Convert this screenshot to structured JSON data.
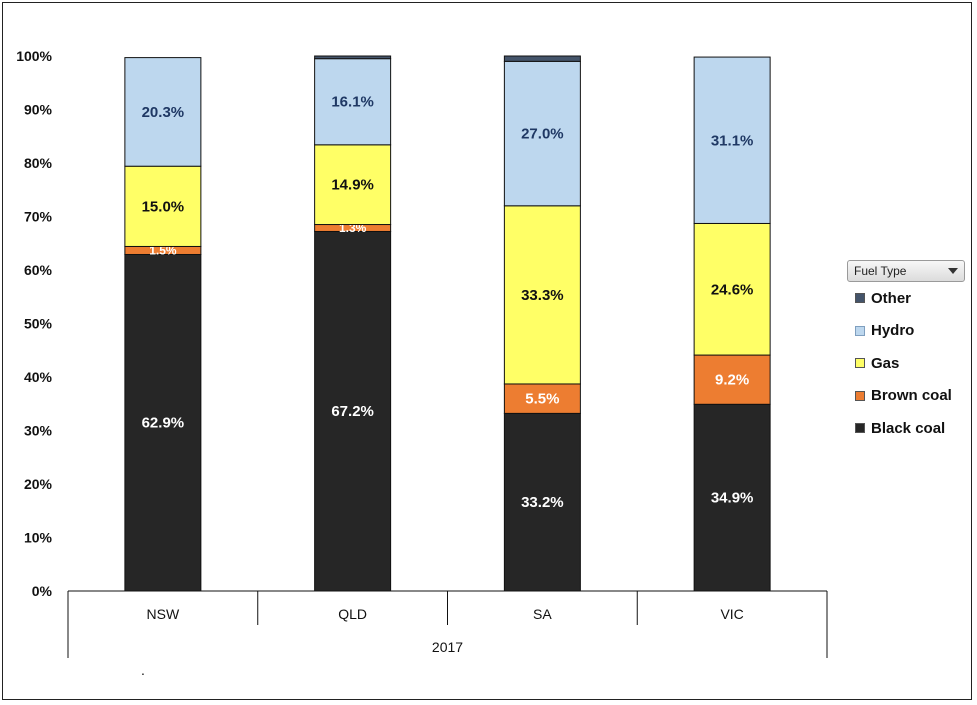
{
  "legend": {
    "header": "Fuel Type"
  },
  "footnote": ".",
  "chart_data": {
    "type": "bar",
    "stacked": true,
    "normalized_percent": true,
    "title": "",
    "xlabel": "",
    "ylabel": "",
    "x_group_label": "2017",
    "categories": [
      "NSW",
      "QLD",
      "SA",
      "VIC"
    ],
    "ylim": [
      0,
      100
    ],
    "yticks": [
      "0%",
      "10%",
      "20%",
      "30%",
      "40%",
      "50%",
      "60%",
      "70%",
      "80%",
      "90%",
      "100%"
    ],
    "grid": false,
    "legend_position": "right",
    "series": [
      {
        "name": "Black coal",
        "color": "#262626",
        "label_color": "#ffffff",
        "values": [
          62.9,
          67.2,
          33.2,
          34.9
        ],
        "labels": [
          "62.9%",
          "67.2%",
          "33.2%",
          "34.9%"
        ]
      },
      {
        "name": "Brown coal",
        "color": "#ed7d31",
        "label_color": "#ffffff",
        "values": [
          1.5,
          1.3,
          5.5,
          9.2
        ],
        "labels": [
          "1.5%",
          "1.3%",
          "5.5%",
          "9.2%"
        ]
      },
      {
        "name": "Gas",
        "color": "#ffff66",
        "label_color": "#111111",
        "values": [
          15.0,
          14.9,
          33.3,
          24.6
        ],
        "labels": [
          "15.0%",
          "14.9%",
          "33.3%",
          "24.6%"
        ]
      },
      {
        "name": "Hydro",
        "color": "#bdd7ee",
        "label_color": "#1f3864",
        "values": [
          20.3,
          16.1,
          27.0,
          31.1
        ],
        "labels": [
          "20.3%",
          "16.1%",
          "27.0%",
          "31.1%"
        ]
      },
      {
        "name": "Other",
        "color": "#44546a",
        "label_color": "#ffffff",
        "values": [
          0.0,
          0.5,
          1.0,
          0.0
        ],
        "labels": [
          "",
          "",
          "",
          ""
        ]
      }
    ],
    "legend_order": [
      "Other",
      "Hydro",
      "Gas",
      "Brown coal",
      "Black coal"
    ]
  }
}
